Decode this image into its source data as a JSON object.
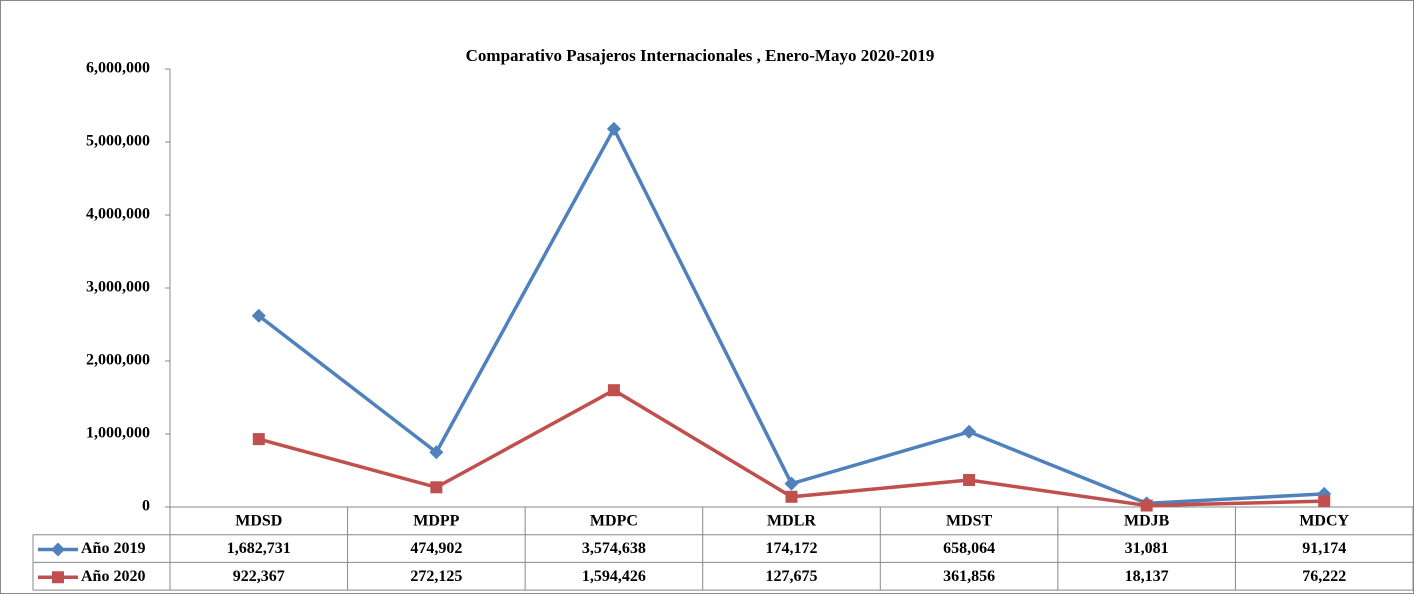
{
  "chart_data": {
    "type": "line",
    "title": "Comparativo Pasajeros Internacionales , Enero-Mayo 2020-2019",
    "categories": [
      "MDSD",
      "MDPP",
      "MDPC",
      "MDLR",
      "MDST",
      "MDJB",
      "MDCY"
    ],
    "series": [
      {
        "name": "Año 2019",
        "color": "#4f81bd",
        "marker": "diamond",
        "values": [
          2620000,
          750000,
          5180000,
          320000,
          1030000,
          50000,
          180000
        ]
      },
      {
        "name": "Año 2020",
        "color": "#c0504d",
        "marker": "square",
        "values": [
          930000,
          270000,
          1600000,
          140000,
          370000,
          20000,
          80000
        ]
      }
    ],
    "data_table": {
      "rows": [
        [
          "1,682,731",
          "474,902",
          "3,574,638",
          "174,172",
          "658,064",
          "31,081",
          "91,174"
        ],
        [
          "922,367",
          "272,125",
          "1,594,426",
          "127,675",
          "361,856",
          "18,137",
          "76,222"
        ]
      ]
    },
    "ylim": [
      0,
      6000000
    ],
    "yticks": [
      0,
      {
        "value": 1000000,
        "label": "1,000,000"
      },
      {
        "value": 2000000,
        "label": "2,000,000"
      },
      {
        "value": 3000000,
        "label": "3,000,000"
      },
      {
        "value": 4000000,
        "label": "4,000,000"
      },
      {
        "value": 5000000,
        "label": "5,000,000"
      },
      {
        "value": 6000000,
        "label": "6,000,000"
      }
    ],
    "grid": false
  }
}
